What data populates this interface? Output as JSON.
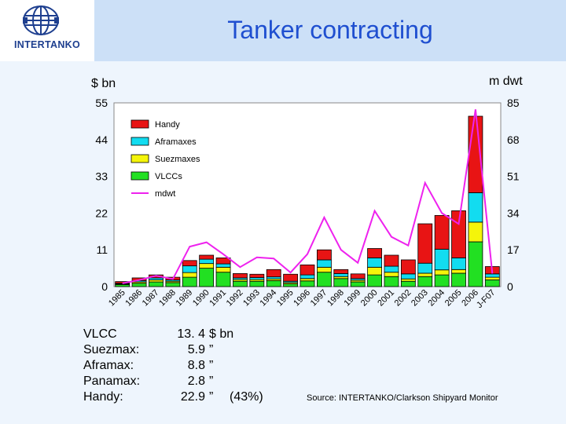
{
  "header": {
    "title": "Tanker contracting",
    "logo_text": "INTERTANKO"
  },
  "chart_data": {
    "type": "bar",
    "stacked": true,
    "title": "Tanker contracting",
    "left_axis_label": "$ bn",
    "right_axis_label": "m dwt",
    "ylim_left": [
      0,
      55
    ],
    "left_ticks": [
      "55",
      "44",
      "33",
      "22",
      "11",
      "0"
    ],
    "ylim_right": [
      0,
      85
    ],
    "right_ticks": [
      "85",
      "68",
      "51",
      "34",
      "17",
      "0"
    ],
    "categories": [
      "1985",
      "1986",
      "1987",
      "1988",
      "1989",
      "1990",
      "1991",
      "1992",
      "1993",
      "1994",
      "1995",
      "1996",
      "1997",
      "1998",
      "1999",
      "2000",
      "2001",
      "2002",
      "2003",
      "2004",
      "2005",
      "2006",
      "J-F07"
    ],
    "series": [
      {
        "name": "VLCCs",
        "color": "#22e022",
        "values": [
          0.6,
          1.0,
          1.4,
          1.2,
          2.8,
          5.5,
          4.3,
          1.6,
          1.6,
          1.8,
          0.8,
          1.7,
          4.3,
          2.4,
          1.4,
          3.5,
          3.0,
          1.6,
          3.0,
          3.5,
          4.0,
          13.4,
          2.0
        ]
      },
      {
        "name": "Suezmaxes",
        "color": "#f5f50a",
        "values": [
          0.2,
          0.4,
          0.6,
          0.4,
          1.4,
          1.4,
          1.5,
          0.5,
          0.5,
          0.5,
          0.4,
          0.7,
          1.5,
          0.6,
          0.5,
          2.3,
          1.3,
          0.7,
          1.0,
          1.5,
          1.1,
          5.9,
          0.8
        ]
      },
      {
        "name": "Aframaxes",
        "color": "#12dcf0",
        "values": [
          0.2,
          0.4,
          0.6,
          0.4,
          2.0,
          1.3,
          1.0,
          0.5,
          0.6,
          0.6,
          0.4,
          1.1,
          2.2,
          0.9,
          0.5,
          2.8,
          1.8,
          1.5,
          3.0,
          6.2,
          3.5,
          8.8,
          1.0
        ]
      },
      {
        "name": "Handy",
        "color": "#e81414",
        "values": [
          0.5,
          0.8,
          0.9,
          0.8,
          1.6,
          1.2,
          1.8,
          1.3,
          1.0,
          2.2,
          2.1,
          3.0,
          3.0,
          1.2,
          1.4,
          2.8,
          3.3,
          4.2,
          11.8,
          10.1,
          14.1,
          22.9,
          2.2
        ]
      }
    ],
    "line_series": {
      "name": "mdwt",
      "axis": "right",
      "color": "#ee22ee",
      "values": [
        1.5,
        3.0,
        5.0,
        3.5,
        18.5,
        20.5,
        15.0,
        9.0,
        13.5,
        13.0,
        6.5,
        15.0,
        32.0,
        17.0,
        11.0,
        35.0,
        23.0,
        19.0,
        48.0,
        34.0,
        29.0,
        82.0,
        6.0
      ]
    },
    "legend": {
      "placement": "top-left",
      "entries": [
        "Handy",
        "Aframaxes",
        "Suezmaxes",
        "VLCCs",
        "mdwt"
      ]
    }
  },
  "summary": {
    "rows": [
      {
        "label": "VLCC",
        "value": "13. 4",
        "unit": "$ bn",
        "share": ""
      },
      {
        "label": "Suezmax:",
        "value": "5.9",
        "unit": "”",
        "share": ""
      },
      {
        "label": "Aframax:",
        "value": "8.8",
        "unit": "”",
        "share": ""
      },
      {
        "label": "Panamax:",
        "value": "2.8",
        "unit": "”",
        "share": ""
      },
      {
        "label": "Handy:",
        "value": "22.9",
        "unit": "”",
        "share": "(43%)"
      }
    ]
  },
  "source": "Source: INTERTANKO/Clarkson Shipyard Monitor",
  "colors": {
    "title": "#1f4fd0",
    "band_top": "#cce0f7",
    "band_bottom": "#eef5fd",
    "logo_blue": "#1e3f8f"
  }
}
